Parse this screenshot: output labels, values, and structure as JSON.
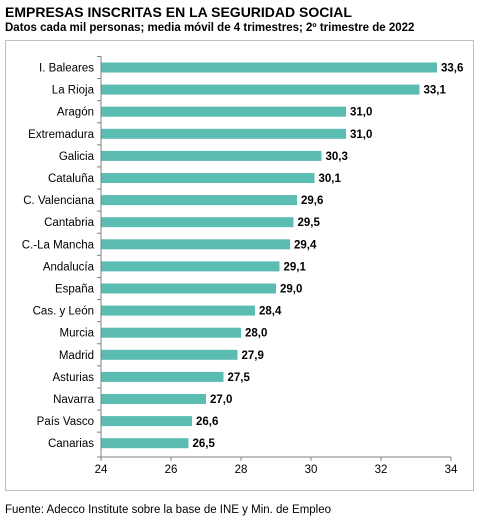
{
  "header": {
    "title": "EMPRESAS INSCRITAS EN LA SEGURIDAD SOCIAL",
    "subtitle": "Datos cada mil personas; media móvil de 4 trimestres; 2º trimestre de 2022"
  },
  "footer": {
    "source": "Fuente: Adecco Institute sobre la base de INE y Min. de Empleo"
  },
  "chart_data": {
    "type": "bar",
    "orientation": "horizontal",
    "categories": [
      "I. Baleares",
      "La Rioja",
      "Aragón",
      "Extremadura",
      "Galicia",
      "Cataluña",
      "C. Valenciana",
      "Cantabria",
      "C.-La Mancha",
      "Andalucía",
      "España",
      "Cas. y León",
      "Murcia",
      "Madrid",
      "Asturias",
      "Navarra",
      "País Vasco",
      "Canarias"
    ],
    "values": [
      33.6,
      33.1,
      31.0,
      31.0,
      30.3,
      30.1,
      29.6,
      29.5,
      29.4,
      29.1,
      29.0,
      28.4,
      28.0,
      27.9,
      27.5,
      27.0,
      26.6,
      26.5
    ],
    "value_labels": [
      "33,6",
      "33,1",
      "31,0",
      "31,0",
      "30,3",
      "30,1",
      "29,6",
      "29,5",
      "29,4",
      "29,1",
      "29,0",
      "28,4",
      "28,0",
      "27,9",
      "27,5",
      "27,0",
      "26,6",
      "26,5"
    ],
    "xlim": [
      24,
      34
    ],
    "xticks": [
      24,
      26,
      28,
      30,
      32,
      34
    ],
    "bar_color": "#5bbcb2",
    "grid": false,
    "legend": "none"
  }
}
